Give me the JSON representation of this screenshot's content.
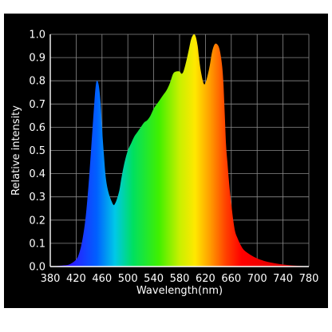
{
  "chart_data": {
    "type": "area",
    "xlabel": "Wavelength(nm)",
    "ylabel": "Relative intensity",
    "xlim": [
      380,
      780
    ],
    "ylim": [
      0,
      1.0
    ],
    "x_ticks": [
      "380",
      "420",
      "460",
      "500",
      "540",
      "580",
      "620",
      "660",
      "700",
      "740",
      "780"
    ],
    "y_ticks": [
      "0.0",
      "0.1",
      "0.2",
      "0.3",
      "0.4",
      "0.5",
      "0.6",
      "0.7",
      "0.8",
      "0.9",
      "1.0"
    ],
    "grid": true,
    "fill": "visible-spectrum gradient",
    "background": "#000000",
    "series": [
      {
        "x": [
          380,
          400,
          410,
          420,
          425,
          430,
          435,
          440,
          445,
          448,
          450,
          452,
          455,
          458,
          460,
          463,
          466,
          470,
          475,
          478,
          480,
          483,
          487,
          490,
          495,
          500,
          505,
          510,
          515,
          520,
          525,
          530,
          535,
          540,
          545,
          550,
          555,
          560,
          565,
          570,
          575,
          580,
          583,
          586,
          590,
          594,
          598,
          602,
          605,
          608,
          610,
          613,
          617,
          620,
          624,
          627,
          630,
          633,
          636,
          640,
          643,
          646,
          648,
          650,
          652,
          654,
          656,
          658,
          660,
          663,
          666,
          670,
          675,
          680,
          690,
          700,
          710,
          720,
          730,
          740,
          750,
          760,
          770,
          780
        ],
        "y": [
          0.0,
          0.005,
          0.01,
          0.03,
          0.06,
          0.12,
          0.22,
          0.38,
          0.58,
          0.7,
          0.77,
          0.8,
          0.78,
          0.7,
          0.6,
          0.48,
          0.38,
          0.32,
          0.28,
          0.265,
          0.27,
          0.29,
          0.33,
          0.38,
          0.45,
          0.5,
          0.53,
          0.56,
          0.58,
          0.6,
          0.62,
          0.63,
          0.65,
          0.68,
          0.7,
          0.72,
          0.74,
          0.76,
          0.79,
          0.83,
          0.84,
          0.84,
          0.83,
          0.84,
          0.88,
          0.93,
          0.98,
          1.0,
          0.99,
          0.95,
          0.9,
          0.84,
          0.79,
          0.79,
          0.83,
          0.87,
          0.92,
          0.95,
          0.96,
          0.95,
          0.92,
          0.86,
          0.78,
          0.65,
          0.52,
          0.45,
          0.38,
          0.32,
          0.27,
          0.2,
          0.15,
          0.12,
          0.09,
          0.07,
          0.05,
          0.035,
          0.025,
          0.018,
          0.013,
          0.009,
          0.006,
          0.004,
          0.002,
          0.001
        ]
      }
    ]
  }
}
